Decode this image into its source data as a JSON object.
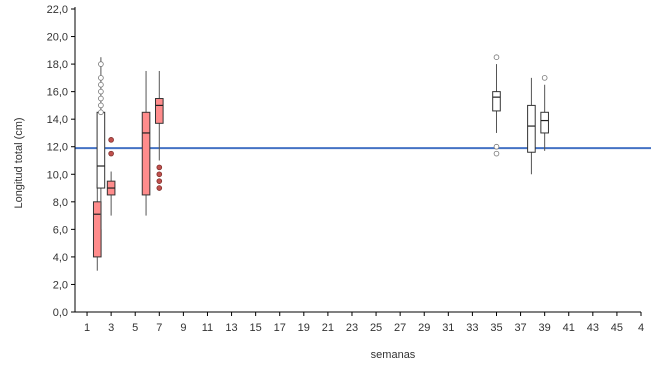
{
  "chart_data": {
    "type": "boxplot",
    "xlabel": "semanas",
    "ylabel": "Longitud total (cm)",
    "x_range": [
      0,
      47
    ],
    "x_tick_labels": [
      "1",
      "3",
      "5",
      "7",
      "9",
      "11",
      "13",
      "15",
      "17",
      "19",
      "21",
      "23",
      "25",
      "27",
      "29",
      "31",
      "33",
      "35",
      "37",
      "39",
      "41",
      "43",
      "45",
      "4"
    ],
    "y_ticks": [
      "0,0",
      "2,0",
      "4,0",
      "6,0",
      "8,0",
      "10,0",
      "12,0",
      "14,0",
      "16,0",
      "18,0",
      "20,0",
      "22,0"
    ],
    "ylim": [
      0,
      22
    ],
    "reference_line": {
      "y": 11.9,
      "color": "#4472c4"
    },
    "colors": {
      "filled": "#ff8c8c",
      "empty": "#ffffff",
      "outlier_filled": "#c0504d",
      "axis": "#000000"
    },
    "boxes": [
      {
        "x": 1.85,
        "q1": 4.0,
        "median": 7.1,
        "q3": 8.0,
        "min": 3.0,
        "max": 9.3,
        "filled": true,
        "outliers": []
      },
      {
        "x": 2.15,
        "q1": 9.0,
        "median": 10.6,
        "q3": 14.5,
        "min": 6.0,
        "max": 18.5,
        "filled": false,
        "outliers": [
          18.0,
          17.0,
          16.5,
          16.0,
          15.5,
          15.0,
          14.5
        ]
      },
      {
        "x": 3.0,
        "q1": 8.5,
        "median": 9.0,
        "q3": 9.5,
        "min": 7.0,
        "max": 10.2,
        "filled": true,
        "outliers": [
          12.5,
          11.5
        ]
      },
      {
        "x": 5.9,
        "q1": 8.5,
        "median": 13.0,
        "q3": 14.5,
        "min": 7.0,
        "max": 17.5,
        "filled": true,
        "outliers": []
      },
      {
        "x": 7.0,
        "q1": 13.7,
        "median": 15.0,
        "q3": 15.5,
        "min": 11.0,
        "max": 17.5,
        "filled": true,
        "outliers": [
          10.5,
          10.0,
          9.5,
          9.0
        ]
      },
      {
        "x": 35.0,
        "q1": 14.6,
        "median": 15.6,
        "q3": 16.0,
        "min": 13.0,
        "max": 18.0,
        "filled": false,
        "outliers": [
          18.5,
          12.0,
          11.5
        ]
      },
      {
        "x": 37.9,
        "q1": 11.6,
        "median": 13.5,
        "q3": 15.0,
        "min": 10.0,
        "max": 17.0,
        "filled": false,
        "outliers": []
      },
      {
        "x": 39.0,
        "q1": 13.0,
        "median": 13.9,
        "q3": 14.5,
        "min": 11.7,
        "max": 16.5,
        "filled": false,
        "outliers": [
          17.0
        ]
      }
    ]
  }
}
